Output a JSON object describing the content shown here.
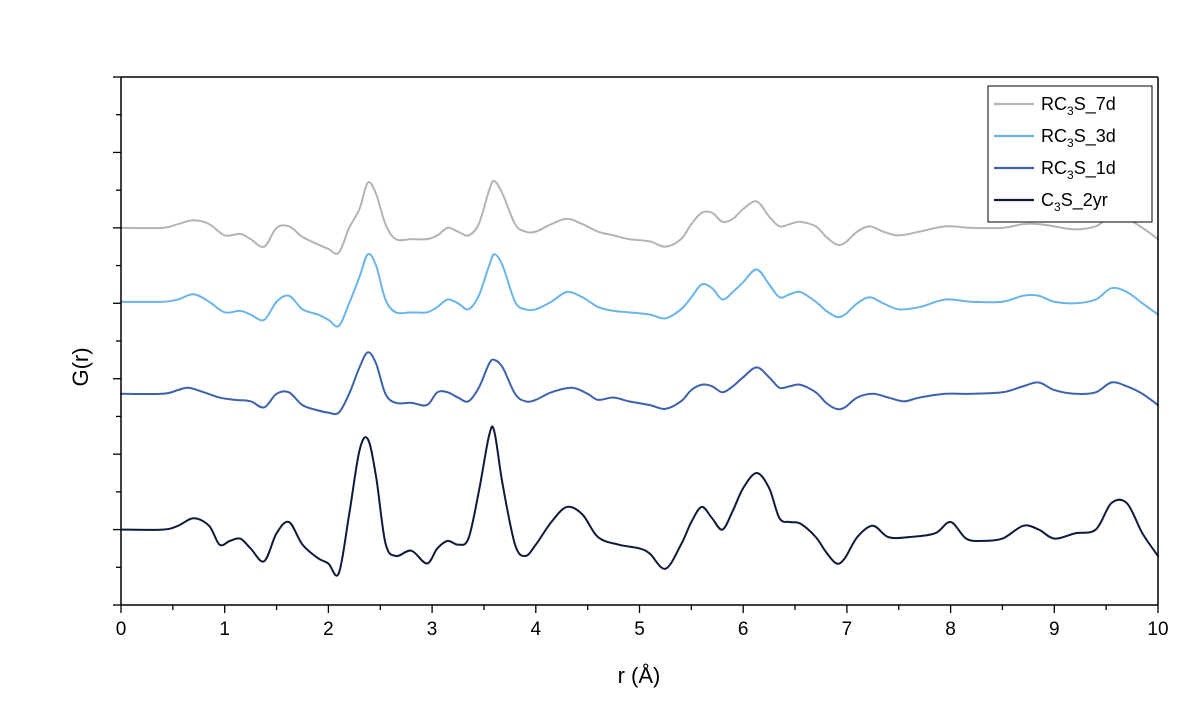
{
  "chart_data": {
    "type": "line",
    "xlabel": "r (Å)",
    "ylabel": "G(r)",
    "xlim": [
      0,
      10
    ],
    "xticks": [
      "0",
      "1",
      "2",
      "3",
      "4",
      "5",
      "6",
      "7",
      "8",
      "9",
      "10"
    ],
    "ylim": [
      -1.0,
      6.0
    ],
    "y_tick_labels_shown": false,
    "grid": false,
    "legend_position": "top-right",
    "series": [
      {
        "name": "RC3S_7d",
        "legend": {
          "prefix": "RC",
          "sub": "3",
          "suffix": "S_7d"
        },
        "color": "#b4b4b4",
        "offset": 4.0,
        "x": [
          0,
          0.4,
          0.55,
          0.7,
          0.85,
          1.0,
          1.15,
          1.25,
          1.38,
          1.5,
          1.62,
          1.75,
          1.9,
          2.0,
          2.1,
          2.2,
          2.3,
          2.38,
          2.46,
          2.55,
          2.65,
          2.8,
          2.95,
          3.05,
          3.15,
          3.25,
          3.35,
          3.45,
          3.55,
          3.6,
          3.68,
          3.8,
          3.9,
          4.0,
          4.15,
          4.3,
          4.45,
          4.6,
          4.75,
          4.9,
          5.1,
          5.25,
          5.4,
          5.5,
          5.6,
          5.7,
          5.8,
          5.9,
          6.0,
          6.13,
          6.25,
          6.35,
          6.45,
          6.55,
          6.7,
          6.8,
          6.9,
          6.98,
          7.1,
          7.22,
          7.35,
          7.5,
          7.7,
          7.95,
          8.2,
          8.5,
          8.7,
          8.85,
          9.0,
          9.2,
          9.4,
          9.55,
          9.7,
          9.85,
          10.0
        ],
        "y": [
          0,
          0,
          0.05,
          0.1,
          0.05,
          -0.1,
          -0.08,
          -0.15,
          -0.25,
          0,
          0.02,
          -0.12,
          -0.22,
          -0.28,
          -0.33,
          0,
          0.25,
          0.6,
          0.45,
          0.05,
          -0.15,
          -0.15,
          -0.15,
          -0.1,
          0,
          -0.05,
          -0.1,
          0.05,
          0.5,
          0.62,
          0.45,
          0.05,
          -0.05,
          -0.05,
          0.05,
          0.12,
          0.05,
          -0.05,
          -0.1,
          -0.15,
          -0.18,
          -0.25,
          -0.15,
          0.05,
          0.2,
          0.2,
          0.08,
          0.12,
          0.25,
          0.35,
          0.15,
          0.02,
          0.05,
          0.08,
          0.02,
          -0.12,
          -0.22,
          -0.2,
          -0.05,
          0.02,
          -0.05,
          -0.1,
          -0.05,
          0.02,
          0.0,
          0.0,
          0.05,
          0.05,
          0.02,
          -0.02,
          0.02,
          0.15,
          0.12,
          0.0,
          -0.15
        ]
      },
      {
        "name": "RC3S_3d",
        "legend": {
          "prefix": "RC",
          "sub": "3",
          "suffix": "S_3d"
        },
        "color": "#6ab4ea",
        "offset": 2.9,
        "x": [
          0,
          0.4,
          0.55,
          0.7,
          0.85,
          1.0,
          1.15,
          1.25,
          1.38,
          1.5,
          1.62,
          1.75,
          1.9,
          2.0,
          2.1,
          2.2,
          2.3,
          2.38,
          2.46,
          2.55,
          2.65,
          2.8,
          2.95,
          3.05,
          3.15,
          3.25,
          3.35,
          3.45,
          3.55,
          3.6,
          3.68,
          3.8,
          3.9,
          4.0,
          4.15,
          4.3,
          4.45,
          4.6,
          4.75,
          4.9,
          5.1,
          5.25,
          5.4,
          5.5,
          5.6,
          5.7,
          5.8,
          5.9,
          6.0,
          6.13,
          6.25,
          6.35,
          6.45,
          6.55,
          6.7,
          6.8,
          6.9,
          6.98,
          7.1,
          7.22,
          7.35,
          7.5,
          7.7,
          7.95,
          8.2,
          8.5,
          8.7,
          8.85,
          9.0,
          9.2,
          9.4,
          9.55,
          9.7,
          9.85,
          10.0
        ],
        "y": [
          0.12,
          0.12,
          0.15,
          0.22,
          0.12,
          -0.02,
          0.0,
          -0.05,
          -0.12,
          0.12,
          0.2,
          0.02,
          -0.05,
          -0.12,
          -0.2,
          0.1,
          0.45,
          0.75,
          0.6,
          0.15,
          -0.02,
          -0.02,
          -0.02,
          0.05,
          0.15,
          0.1,
          0.02,
          0.2,
          0.6,
          0.75,
          0.6,
          0.12,
          0.02,
          0.02,
          0.12,
          0.25,
          0.18,
          0.05,
          0.0,
          -0.02,
          -0.05,
          -0.1,
          0.02,
          0.18,
          0.35,
          0.3,
          0.15,
          0.25,
          0.38,
          0.55,
          0.35,
          0.18,
          0.22,
          0.25,
          0.12,
          0.0,
          -0.08,
          -0.05,
          0.1,
          0.18,
          0.1,
          0.02,
          0.05,
          0.15,
          0.12,
          0.12,
          0.2,
          0.2,
          0.12,
          0.1,
          0.15,
          0.3,
          0.25,
          0.1,
          -0.05
        ]
      },
      {
        "name": "RC3S_1d",
        "legend": {
          "prefix": "RC",
          "sub": "3",
          "suffix": "S_1d"
        },
        "color": "#3d62ac",
        "offset": 1.8,
        "x": [
          0,
          0.4,
          0.55,
          0.65,
          0.8,
          0.95,
          1.1,
          1.25,
          1.38,
          1.5,
          1.62,
          1.75,
          1.9,
          2.0,
          2.1,
          2.2,
          2.3,
          2.38,
          2.46,
          2.55,
          2.65,
          2.8,
          2.95,
          3.05,
          3.15,
          3.25,
          3.35,
          3.45,
          3.55,
          3.6,
          3.68,
          3.8,
          3.9,
          4.0,
          4.15,
          4.35,
          4.5,
          4.6,
          4.75,
          4.9,
          5.1,
          5.25,
          5.4,
          5.5,
          5.6,
          5.7,
          5.8,
          5.9,
          6.0,
          6.13,
          6.25,
          6.35,
          6.45,
          6.55,
          6.7,
          6.8,
          6.9,
          6.98,
          7.1,
          7.25,
          7.4,
          7.55,
          7.7,
          7.95,
          8.2,
          8.5,
          8.7,
          8.85,
          9.0,
          9.2,
          9.4,
          9.55,
          9.7,
          9.85,
          10.0
        ],
        "y": [
          0,
          0,
          0.05,
          0.08,
          0.02,
          -0.05,
          -0.08,
          -0.1,
          -0.18,
          0.0,
          0.02,
          -0.15,
          -0.22,
          -0.25,
          -0.25,
          0.0,
          0.35,
          0.55,
          0.4,
          0.0,
          -0.12,
          -0.12,
          -0.15,
          0.02,
          0.02,
          -0.05,
          -0.1,
          0.08,
          0.4,
          0.45,
          0.35,
          0.0,
          -0.1,
          -0.08,
          0.02,
          0.08,
          0.0,
          -0.08,
          -0.05,
          -0.1,
          -0.15,
          -0.2,
          -0.1,
          0.05,
          0.12,
          0.1,
          0.02,
          0.1,
          0.22,
          0.35,
          0.22,
          0.08,
          0.1,
          0.12,
          0.02,
          -0.12,
          -0.2,
          -0.18,
          -0.05,
          0.0,
          -0.05,
          -0.1,
          -0.05,
          0.0,
          0.0,
          0.02,
          0.1,
          0.15,
          0.05,
          0.0,
          0.02,
          0.15,
          0.1,
          0.0,
          -0.15
        ]
      },
      {
        "name": "C3S_2yr",
        "legend": {
          "prefix": "C",
          "sub": "3",
          "suffix": "S_2yr"
        },
        "color": "#0f1a38",
        "offset": 0.0,
        "x": [
          0,
          0.4,
          0.55,
          0.7,
          0.85,
          0.95,
          1.05,
          1.15,
          1.25,
          1.38,
          1.5,
          1.62,
          1.75,
          1.9,
          2.0,
          2.1,
          2.2,
          2.3,
          2.38,
          2.46,
          2.55,
          2.65,
          2.8,
          2.95,
          3.05,
          3.15,
          3.25,
          3.35,
          3.45,
          3.55,
          3.6,
          3.68,
          3.8,
          3.9,
          4.0,
          4.15,
          4.3,
          4.45,
          4.6,
          4.8,
          5.0,
          5.1,
          5.25,
          5.4,
          5.5,
          5.6,
          5.7,
          5.8,
          5.9,
          6.0,
          6.13,
          6.25,
          6.35,
          6.45,
          6.55,
          6.7,
          6.8,
          6.9,
          6.98,
          7.1,
          7.25,
          7.4,
          7.6,
          7.85,
          8.0,
          8.15,
          8.3,
          8.5,
          8.7,
          8.85,
          9.0,
          9.2,
          9.4,
          9.55,
          9.7,
          9.85,
          10.0
        ],
        "y": [
          0,
          0,
          0.05,
          0.15,
          0.05,
          -0.2,
          -0.15,
          -0.12,
          -0.25,
          -0.42,
          -0.05,
          0.1,
          -0.2,
          -0.38,
          -0.45,
          -0.58,
          0.2,
          1.05,
          1.2,
          0.7,
          -0.18,
          -0.35,
          -0.28,
          -0.45,
          -0.25,
          -0.15,
          -0.2,
          -0.12,
          0.5,
          1.25,
          1.3,
          0.6,
          -0.2,
          -0.35,
          -0.2,
          0.1,
          0.3,
          0.2,
          -0.1,
          -0.2,
          -0.25,
          -0.32,
          -0.52,
          -0.2,
          0.1,
          0.3,
          0.15,
          0.0,
          0.25,
          0.55,
          0.75,
          0.55,
          0.15,
          0.1,
          0.08,
          -0.1,
          -0.3,
          -0.45,
          -0.38,
          -0.1,
          0.05,
          -0.1,
          -0.1,
          -0.05,
          0.1,
          -0.12,
          -0.15,
          -0.12,
          0.05,
          0.0,
          -0.12,
          -0.05,
          0.0,
          0.35,
          0.35,
          -0.05,
          -0.35
        ]
      }
    ]
  }
}
